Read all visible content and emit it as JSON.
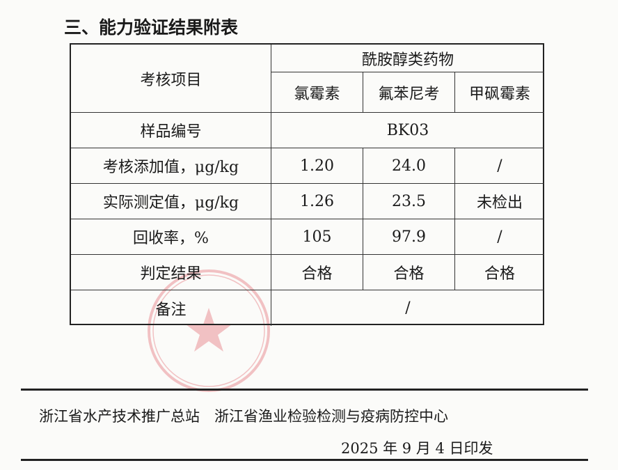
{
  "title": "三、能力验证结果附表",
  "table": {
    "header_item": "考核项目",
    "group_header": "酰胺醇类药物",
    "drug_headers": [
      "氯霉素",
      "氟苯尼考",
      "甲砜霉素"
    ],
    "rows": [
      {
        "label": "样品编号",
        "merged": "BK03"
      },
      {
        "label": "考核添加值，μg/kg",
        "values": [
          "1.20",
          "24.0",
          "/"
        ]
      },
      {
        "label": "实际测定值，μg/kg",
        "values": [
          "1.26",
          "23.5",
          "未检出"
        ]
      },
      {
        "label": "回收率，%",
        "values": [
          "105",
          "97.9",
          "/"
        ]
      },
      {
        "label": "判定结果",
        "values": [
          "合格",
          "合格",
          "合格"
        ]
      },
      {
        "label": "备注",
        "merged": "/"
      }
    ]
  },
  "footer": {
    "issuers": "浙江省水产技术推广总站　浙江省渔业检验检测与疫病防控中心",
    "date": "2025 年 9 月 4 日印发"
  },
  "stamp_color": "#d9303a"
}
